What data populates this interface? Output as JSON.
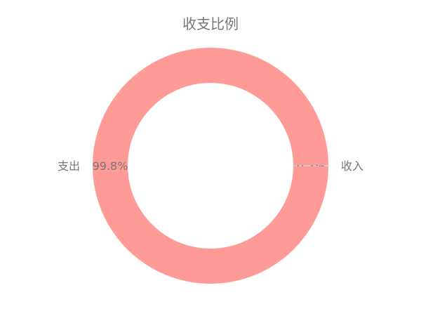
{
  "chart_data": {
    "type": "pie",
    "title": "收支比例",
    "series": [
      {
        "name": "支出",
        "value": 99.8,
        "label": "99.8%",
        "color": "#ff9b97"
      },
      {
        "name": "收入",
        "value": 0.2,
        "label": "0.2%",
        "color": "#cccccc"
      }
    ],
    "donut": true,
    "legend": "none"
  }
}
